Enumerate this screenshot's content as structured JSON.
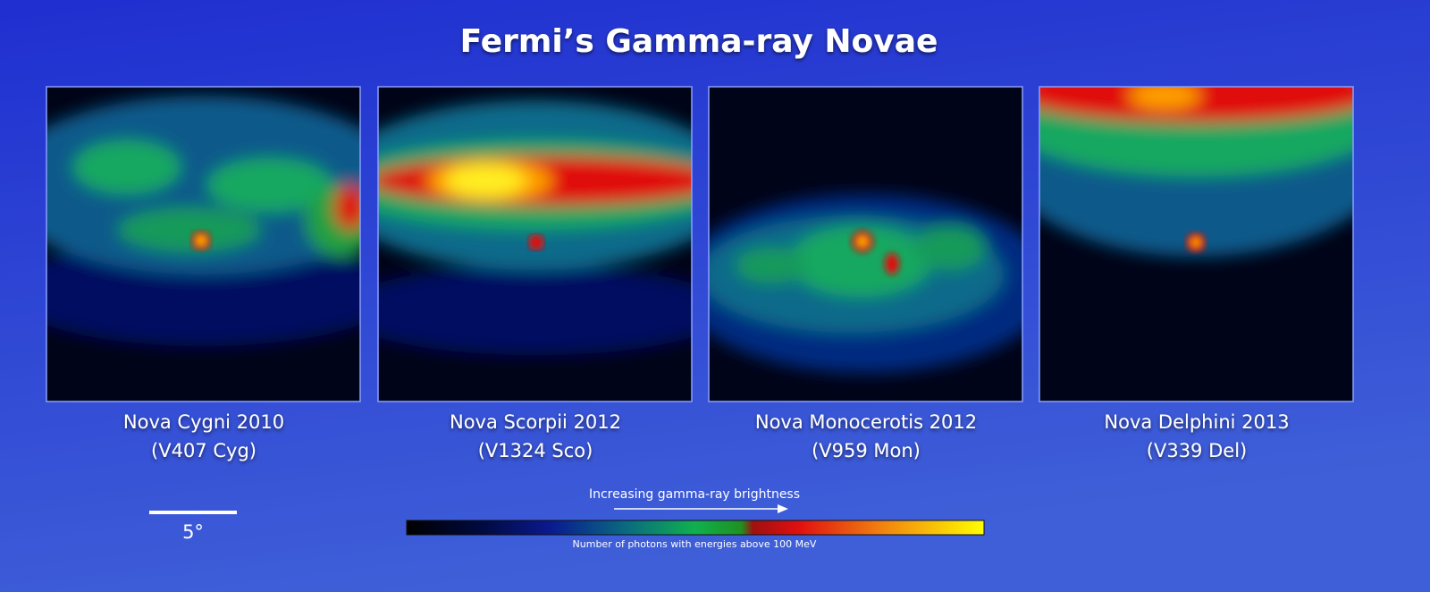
{
  "header": {
    "title": "Fermi’s Gamma-ray Novae"
  },
  "panels": [
    {
      "name": "Nova Cygni 2010",
      "designation": "(V407 Cyg)"
    },
    {
      "name": "Nova Scorpii 2012",
      "designation": "(V1324 Sco)"
    },
    {
      "name": "Nova Monocerotis 2012",
      "designation": "(V959 Mon)"
    },
    {
      "name": "Nova Delphini 2013",
      "designation": "(V339 Del)"
    }
  ],
  "scale_bar": {
    "label": "5°"
  },
  "colorbar": {
    "title": "Increasing gamma-ray brightness",
    "caption": "Number of photons with energies above 100 MeV"
  }
}
